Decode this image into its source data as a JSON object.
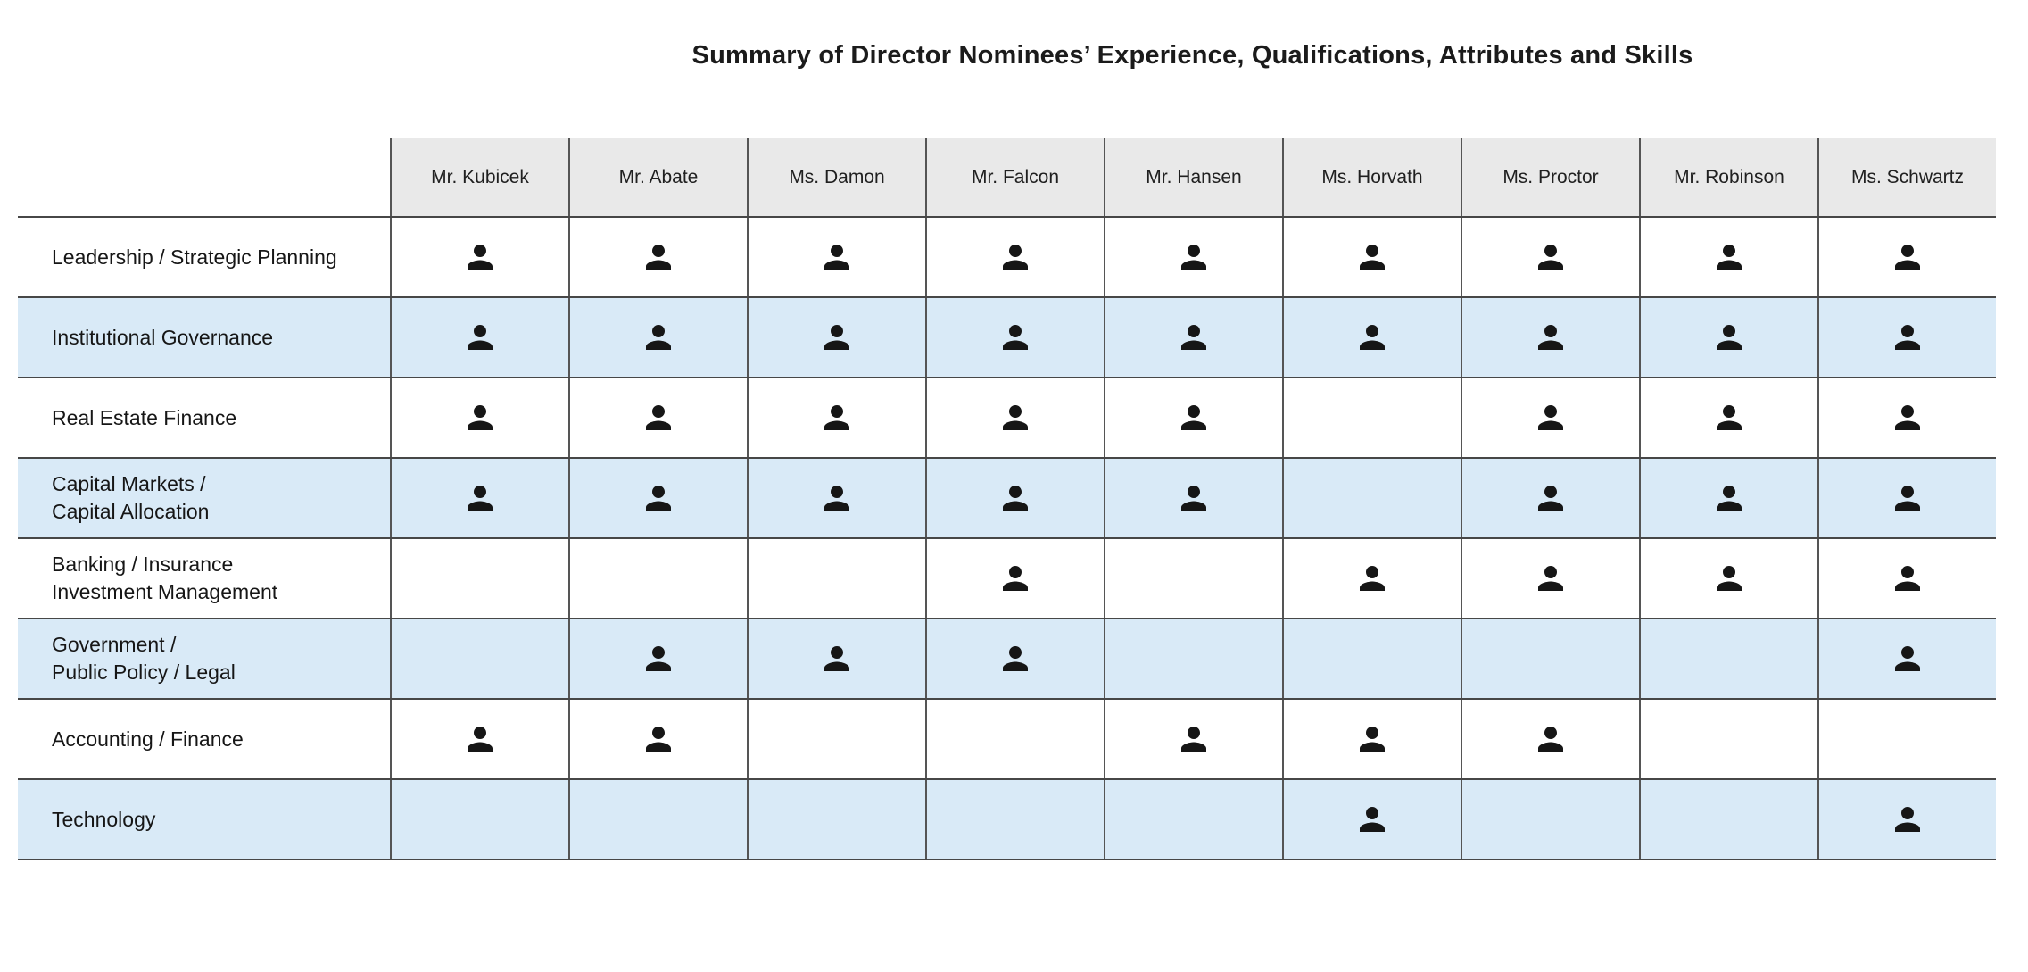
{
  "title": "Summary of Director Nominees’ Experience, Qualifications, Attributes and Skills",
  "columns": [
    "Mr. Kubicek",
    "Mr. Abate",
    "Ms. Damon",
    "Mr. Falcon",
    "Mr. Hansen",
    "Ms. Horvath",
    "Ms. Proctor",
    "Mr. Robinson",
    "Ms. Schwartz"
  ],
  "rows": [
    {
      "label_lines": [
        "Leadership / Strategic Planning"
      ],
      "cells": [
        1,
        1,
        1,
        1,
        1,
        1,
        1,
        1,
        1
      ]
    },
    {
      "label_lines": [
        "Institutional Governance"
      ],
      "cells": [
        1,
        1,
        1,
        1,
        1,
        1,
        1,
        1,
        1
      ]
    },
    {
      "label_lines": [
        "Real Estate Finance"
      ],
      "cells": [
        1,
        1,
        1,
        1,
        1,
        0,
        1,
        1,
        1
      ]
    },
    {
      "label_lines": [
        "Capital Markets /",
        "Capital Allocation"
      ],
      "cells": [
        1,
        1,
        1,
        1,
        1,
        0,
        1,
        1,
        1
      ]
    },
    {
      "label_lines": [
        "Banking / Insurance",
        "Investment Management"
      ],
      "cells": [
        0,
        0,
        0,
        1,
        0,
        1,
        1,
        1,
        1
      ]
    },
    {
      "label_lines": [
        "Government /",
        "Public Policy / Legal"
      ],
      "cells": [
        0,
        1,
        1,
        1,
        0,
        0,
        0,
        0,
        1
      ]
    },
    {
      "label_lines": [
        "Accounting / Finance"
      ],
      "cells": [
        1,
        1,
        0,
        0,
        1,
        1,
        1,
        0,
        0
      ]
    },
    {
      "label_lines": [
        "Technology"
      ],
      "cells": [
        0,
        0,
        0,
        0,
        0,
        1,
        0,
        0,
        1
      ]
    }
  ],
  "icons": {
    "present_marker": "person-icon"
  },
  "colors": {
    "header_bg": "#e9e9e9",
    "row_alt_bg": "#d9eaf7",
    "horizontal_border": "#474747",
    "vertical_border": "#555555",
    "icon": "#161616",
    "title_text": "#1b1b1b",
    "body_text": "#161616"
  }
}
